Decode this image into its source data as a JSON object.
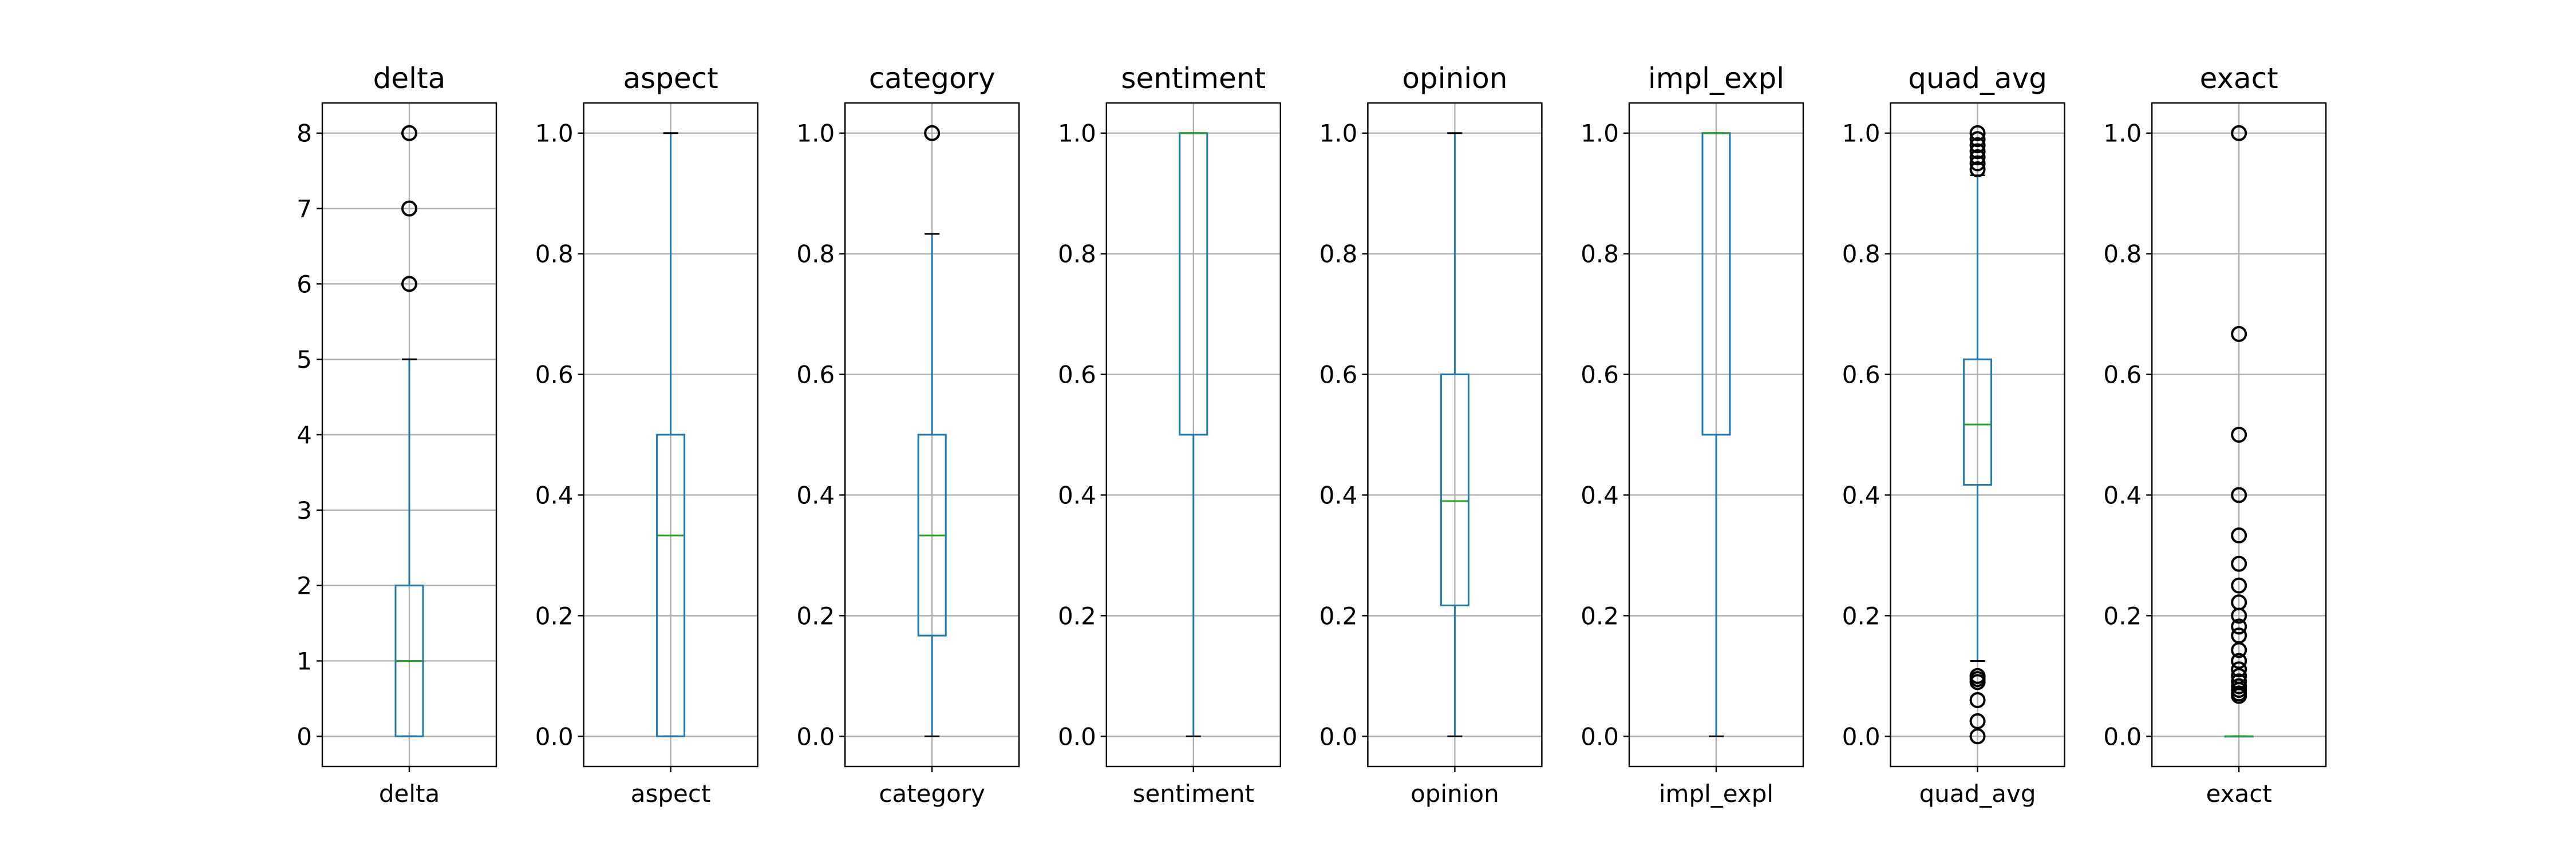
{
  "chart_data": [
    {
      "type": "box",
      "title": "delta",
      "xtick": "delta",
      "ylim": [
        -0.4,
        8.4
      ],
      "yticks": [
        0,
        1,
        2,
        3,
        4,
        5,
        6,
        7,
        8
      ],
      "tick_labels": [
        "0",
        "1",
        "2",
        "3",
        "4",
        "5",
        "6",
        "7",
        "8"
      ],
      "whislo": 0,
      "q1": 0,
      "med": 1,
      "q3": 2,
      "whishi": 5,
      "fliers": [
        6,
        7,
        8
      ]
    },
    {
      "type": "box",
      "title": "aspect",
      "xtick": "aspect",
      "ylim": [
        -0.05,
        1.05
      ],
      "yticks": [
        0,
        0.2,
        0.4,
        0.6,
        0.8,
        1.0
      ],
      "tick_labels": [
        "0.0",
        "0.2",
        "0.4",
        "0.6",
        "0.8",
        "1.0"
      ],
      "whislo": 0,
      "q1": 0,
      "med": 0.333,
      "q3": 0.5,
      "whishi": 1.0,
      "fliers": []
    },
    {
      "type": "box",
      "title": "category",
      "xtick": "category",
      "ylim": [
        -0.05,
        1.05
      ],
      "yticks": [
        0,
        0.2,
        0.4,
        0.6,
        0.8,
        1.0
      ],
      "tick_labels": [
        "0.0",
        "0.2",
        "0.4",
        "0.6",
        "0.8",
        "1.0"
      ],
      "whislo": 0,
      "q1": 0.167,
      "med": 0.333,
      "q3": 0.5,
      "whishi": 0.833,
      "fliers": [
        1.0
      ]
    },
    {
      "type": "box",
      "title": "sentiment",
      "xtick": "sentiment",
      "ylim": [
        -0.05,
        1.05
      ],
      "yticks": [
        0,
        0.2,
        0.4,
        0.6,
        0.8,
        1.0
      ],
      "tick_labels": [
        "0.0",
        "0.2",
        "0.4",
        "0.6",
        "0.8",
        "1.0"
      ],
      "whislo": 0,
      "q1": 0.5,
      "med": 1.0,
      "q3": 1.0,
      "whishi": 1.0,
      "fliers": []
    },
    {
      "type": "box",
      "title": "opinion",
      "xtick": "opinion",
      "ylim": [
        -0.05,
        1.05
      ],
      "yticks": [
        0,
        0.2,
        0.4,
        0.6,
        0.8,
        1.0
      ],
      "tick_labels": [
        "0.0",
        "0.2",
        "0.4",
        "0.6",
        "0.8",
        "1.0"
      ],
      "whislo": 0,
      "q1": 0.217,
      "med": 0.39,
      "q3": 0.6,
      "whishi": 1.0,
      "fliers": []
    },
    {
      "type": "box",
      "title": "impl_expl",
      "xtick": "impl_expl",
      "ylim": [
        -0.05,
        1.05
      ],
      "yticks": [
        0,
        0.2,
        0.4,
        0.6,
        0.8,
        1.0
      ],
      "tick_labels": [
        "0.0",
        "0.2",
        "0.4",
        "0.6",
        "0.8",
        "1.0"
      ],
      "whislo": 0,
      "q1": 0.5,
      "med": 1.0,
      "q3": 1.0,
      "whishi": 1.0,
      "fliers": []
    },
    {
      "type": "box",
      "title": "quad_avg",
      "xtick": "quad_avg",
      "ylim": [
        -0.05,
        1.05
      ],
      "yticks": [
        0,
        0.2,
        0.4,
        0.6,
        0.8,
        1.0
      ],
      "tick_labels": [
        "0.0",
        "0.2",
        "0.4",
        "0.6",
        "0.8",
        "1.0"
      ],
      "whislo": 0.125,
      "q1": 0.417,
      "med": 0.517,
      "q3": 0.625,
      "whishi": 0.93,
      "fliers": [
        1.0,
        0.99,
        0.98,
        0.97,
        0.96,
        0.95,
        0.94,
        0.1,
        0.095,
        0.09,
        0.06,
        0.025,
        0.0
      ]
    },
    {
      "type": "box",
      "title": "exact",
      "xtick": "exact",
      "ylim": [
        -0.05,
        1.05
      ],
      "yticks": [
        0,
        0.2,
        0.4,
        0.6,
        0.8,
        1.0
      ],
      "tick_labels": [
        "0.0",
        "0.2",
        "0.4",
        "0.6",
        "0.8",
        "1.0"
      ],
      "whislo": 0,
      "q1": 0,
      "med": 0,
      "q3": 0,
      "whishi": 0,
      "fliers": [
        1.0,
        0.667,
        0.5,
        0.4,
        0.333,
        0.286,
        0.25,
        0.222,
        0.2,
        0.182,
        0.167,
        0.143,
        0.125,
        0.111,
        0.1,
        0.091,
        0.083,
        0.077,
        0.071,
        0.067
      ]
    }
  ],
  "colors": {
    "box": "#1f77b4",
    "median": "#2ca02c",
    "grid": "#b0b0b0",
    "flier": "#000000"
  },
  "grid": true
}
